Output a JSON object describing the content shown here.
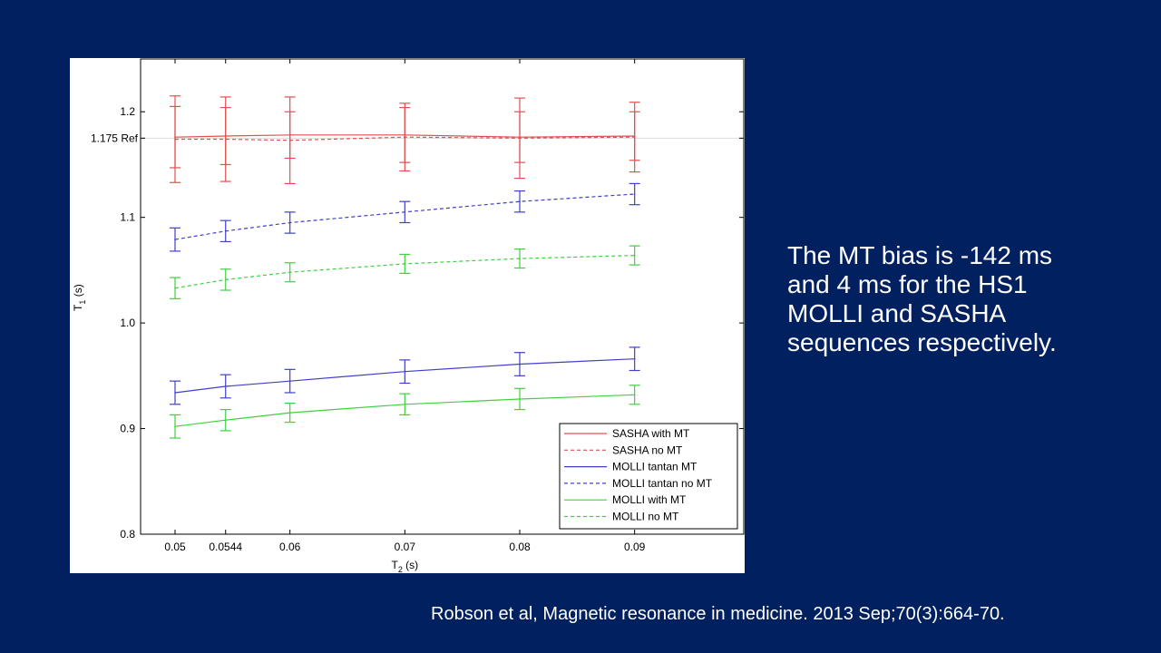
{
  "slide": {
    "background": "#002060",
    "caption_lines": [
      "The MT bias is -142 ms",
      "and 4 ms for the HS1",
      "MOLLI and SASHA",
      "sequences respectively."
    ],
    "citation": "Robson et al, Magnetic resonance in medicine. 2013 Sep;70(3):664-70."
  },
  "chart_data": {
    "type": "line",
    "title": "",
    "xlabel": "T",
    "xlabel_sub": "2",
    "xlabel_unit": " (s)",
    "ylabel": "T",
    "ylabel_sub": "1",
    "ylabel_unit": " (s)",
    "xlim": [
      0.047,
      0.0995
    ],
    "ylim": [
      0.8,
      1.25
    ],
    "x": [
      0.05,
      0.0544,
      0.06,
      0.07,
      0.08,
      0.09
    ],
    "xticks": [
      0.05,
      0.0544,
      0.06,
      0.07,
      0.08,
      0.09
    ],
    "xtick_labels": [
      "0.05",
      "0.0544",
      "0.06",
      "0.07",
      "0.08",
      "0.09"
    ],
    "yticks": [
      0.8,
      0.9,
      1.0,
      1.1,
      1.2
    ],
    "ytick_labels": [
      "0.8",
      "0.9",
      "1.0",
      "1.1",
      "1.2"
    ],
    "reference": {
      "value": 1.175,
      "label": "1.175 Ref"
    },
    "legend_position": "bottom-right",
    "grid": false,
    "series": [
      {
        "name": "SASHA with MT",
        "color": "#e05050",
        "dash": false,
        "values": [
          1.176,
          1.177,
          1.178,
          1.178,
          1.176,
          1.177
        ],
        "errors": [
          0.029,
          0.027,
          0.022,
          0.026,
          0.024,
          0.023
        ]
      },
      {
        "name": "SASHA no MT",
        "color": "#e05050",
        "dash": true,
        "values": [
          1.174,
          1.174,
          1.173,
          1.176,
          1.175,
          1.176
        ],
        "errors": [
          0.041,
          0.04,
          0.041,
          0.032,
          0.038,
          0.033
        ]
      },
      {
        "name": "MOLLI tantan MT",
        "color": "#4040c8",
        "dash": false,
        "values": [
          0.934,
          0.94,
          0.945,
          0.954,
          0.961,
          0.966
        ],
        "errors": [
          0.011,
          0.011,
          0.011,
          0.011,
          0.011,
          0.011
        ]
      },
      {
        "name": "MOLLI tantan no MT",
        "color": "#4040c8",
        "dash": true,
        "values": [
          1.079,
          1.087,
          1.095,
          1.105,
          1.115,
          1.122
        ],
        "errors": [
          0.011,
          0.01,
          0.01,
          0.01,
          0.01,
          0.01
        ]
      },
      {
        "name": "MOLLI with MT",
        "color": "#40d040",
        "dash": false,
        "values": [
          0.902,
          0.908,
          0.915,
          0.923,
          0.928,
          0.932
        ],
        "errors": [
          0.011,
          0.01,
          0.009,
          0.01,
          0.01,
          0.009
        ]
      },
      {
        "name": "MOLLI no MT",
        "color": "#40d040",
        "dash": true,
        "values": [
          1.033,
          1.041,
          1.048,
          1.056,
          1.061,
          1.064
        ],
        "errors": [
          0.01,
          0.01,
          0.009,
          0.009,
          0.009,
          0.009
        ]
      }
    ]
  }
}
